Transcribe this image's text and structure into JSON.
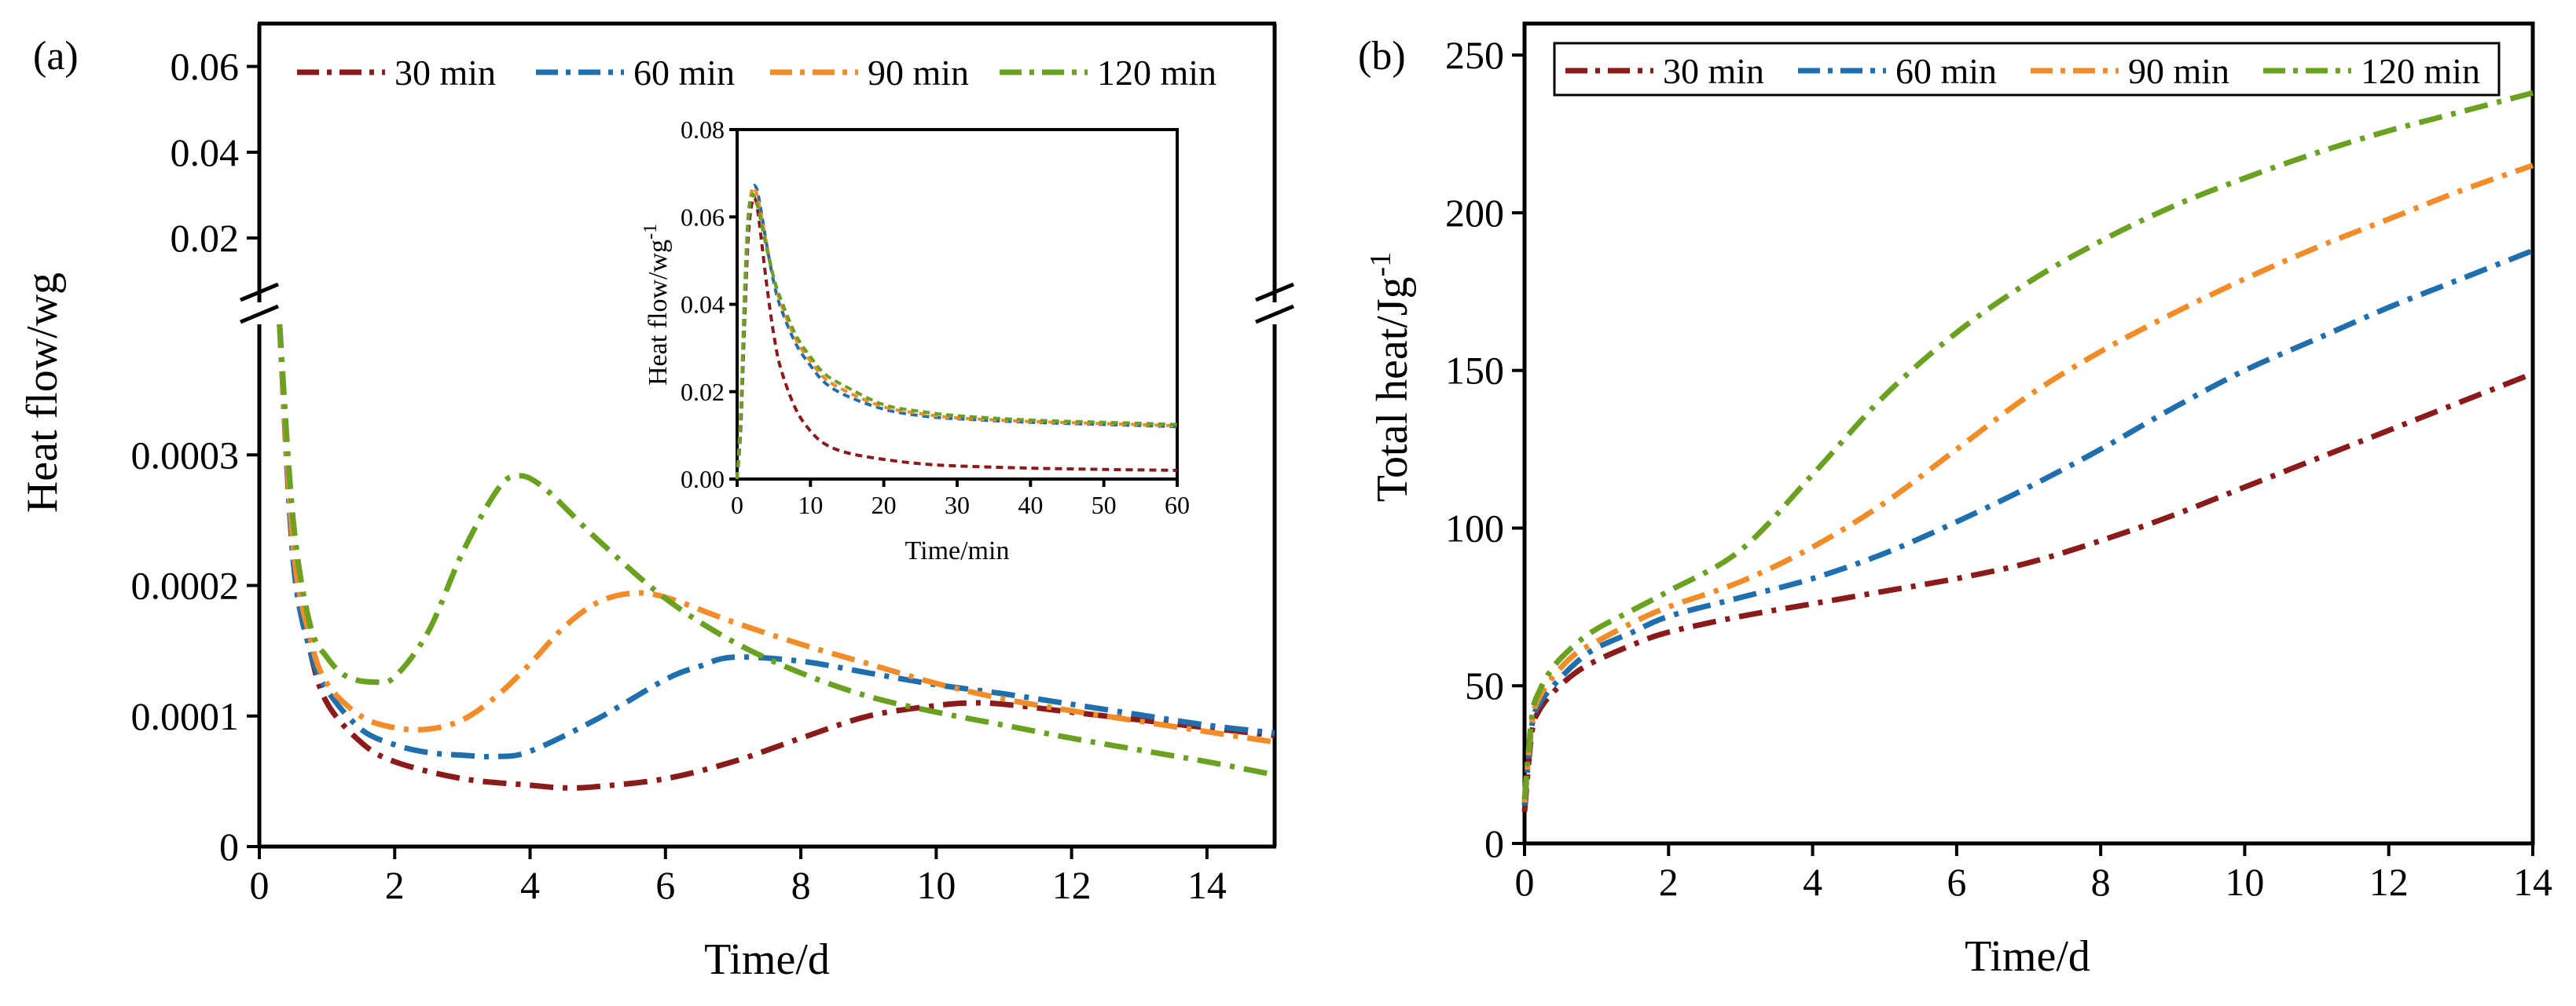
{
  "chart_data": [
    {
      "panel": "(a)",
      "type": "line",
      "ylabel": "Heat flow/wg",
      "xlabel": "Time/d",
      "xlim": [
        0,
        15
      ],
      "x_ticks": [
        0,
        2,
        4,
        6,
        8,
        10,
        12,
        14
      ],
      "y_lower_ticks": [
        0,
        0.0001,
        0.0002,
        0.0003
      ],
      "y_lower_tick_labels": [
        "0",
        "0.0001",
        "0.0002",
        "0.0003"
      ],
      "y_lower_range": [
        0,
        0.0004
      ],
      "y_upper_ticks": [
        0.02,
        0.04,
        0.06
      ],
      "y_upper_tick_labels": [
        "0.02",
        "0.04",
        "0.06"
      ],
      "y_upper_range": [
        0.005,
        0.07
      ],
      "legend": [
        "30 min",
        "60 min",
        "90 min",
        "120 min"
      ],
      "series": [
        {
          "name": "30 min",
          "color": "#8B1A1A",
          "x": [
            0.3,
            0.5,
            0.75,
            1,
            1.5,
            2,
            3,
            4,
            4.5,
            5,
            6,
            7,
            8,
            9,
            10,
            10.5,
            11,
            12,
            13,
            14,
            15
          ],
          "y": [
            0.0004,
            0.00022,
            0.00015,
            0.00011,
            8e-05,
            6.5e-05,
            5.2e-05,
            4.7e-05,
            4.5e-05,
            4.6e-05,
            5.2e-05,
            6.5e-05,
            8.3e-05,
            0.0001,
            0.000108,
            0.00011,
            0.000109,
            0.000103,
            9.7e-05,
            9.1e-05,
            8.5e-05
          ]
        },
        {
          "name": "60 min",
          "color": "#1F6FAF",
          "x": [
            0.3,
            0.5,
            0.75,
            1,
            1.5,
            2,
            2.5,
            3,
            3.5,
            4,
            5,
            6,
            6.5,
            7,
            8,
            9,
            10,
            11,
            12,
            13,
            14,
            15
          ],
          "y": [
            0.0004,
            0.00022,
            0.00015,
            0.00012,
            9e-05,
            7.8e-05,
            7.2e-05,
            7e-05,
            6.9e-05,
            7.3e-05,
            9.8e-05,
            0.000128,
            0.000138,
            0.000145,
            0.000142,
            0.000133,
            0.000124,
            0.000117,
            0.000109,
            0.000101,
            9.3e-05,
            8.7e-05
          ]
        },
        {
          "name": "90 min",
          "color": "#F28C28",
          "x": [
            0.3,
            0.5,
            0.75,
            1,
            1.5,
            2,
            2.5,
            3,
            3.5,
            4,
            4.5,
            5,
            5.5,
            6,
            7,
            8,
            9,
            10,
            11,
            12,
            13,
            14,
            15
          ],
          "y": [
            0.0004,
            0.00023,
            0.00016,
            0.000125,
            0.0001,
            9.1e-05,
            9e-05,
            9.7e-05,
            0.000115,
            0.00014,
            0.000168,
            0.000187,
            0.000194,
            0.000191,
            0.000172,
            0.000155,
            0.00014,
            0.000125,
            0.000113,
            0.000104,
            9.6e-05,
            8.8e-05,
            8e-05
          ]
        },
        {
          "name": "120 min",
          "color": "#6AA121",
          "x": [
            0.3,
            0.5,
            0.75,
            1,
            1.3,
            1.7,
            2,
            2.5,
            3,
            3.5,
            3.8,
            4.2,
            5,
            6,
            7,
            8,
            9,
            10,
            11,
            12,
            13,
            14,
            15
          ],
          "y": [
            0.0004,
            0.00025,
            0.00017,
            0.000145,
            0.00013,
            0.000126,
            0.00013,
            0.000165,
            0.000225,
            0.000272,
            0.000284,
            0.000275,
            0.000235,
            0.00019,
            0.000157,
            0.000133,
            0.000115,
            0.000103,
            9.3e-05,
            8.3e-05,
            7.4e-05,
            6.5e-05,
            5.5e-05
          ]
        }
      ]
    },
    {
      "panel": "inset",
      "type": "line",
      "xlabel": "Time/min",
      "ylabel": "Heat flow/wg",
      "ylabel_superscript": "-1",
      "xlim": [
        0,
        60
      ],
      "ylim": [
        0,
        0.08
      ],
      "x_ticks": [
        0,
        10,
        20,
        30,
        40,
        50,
        60
      ],
      "y_ticks": [
        0.0,
        0.02,
        0.04,
        0.06,
        0.08
      ],
      "y_tick_labels": [
        "0.00",
        "0.02",
        "0.04",
        "0.06",
        "0.08"
      ],
      "series": [
        {
          "name": "30 min",
          "color": "#8B1A1A",
          "x": [
            0,
            0.5,
            1,
            1.5,
            2,
            2.5,
            3,
            4,
            5,
            6,
            8,
            10,
            12,
            15,
            20,
            25,
            30,
            40,
            50,
            60
          ],
          "y": [
            0,
            0.012,
            0.035,
            0.055,
            0.063,
            0.064,
            0.059,
            0.045,
            0.033,
            0.025,
            0.016,
            0.011,
            0.008,
            0.006,
            0.0045,
            0.0035,
            0.003,
            0.0025,
            0.0022,
            0.002
          ]
        },
        {
          "name": "60 min",
          "color": "#1F6FAF",
          "x": [
            0,
            0.5,
            1,
            1.5,
            2,
            2.5,
            3,
            4,
            5,
            6,
            8,
            10,
            12,
            15,
            20,
            25,
            30,
            40,
            50,
            60
          ],
          "y": [
            0,
            0.014,
            0.038,
            0.058,
            0.066,
            0.067,
            0.064,
            0.054,
            0.045,
            0.039,
            0.031,
            0.026,
            0.022,
            0.019,
            0.016,
            0.0145,
            0.0138,
            0.013,
            0.0125,
            0.012
          ]
        },
        {
          "name": "90 min",
          "color": "#F28C28",
          "x": [
            0,
            0.5,
            1,
            1.5,
            2,
            2.5,
            3,
            4,
            5,
            6,
            8,
            10,
            12,
            15,
            20,
            25,
            30,
            40,
            50,
            60
          ],
          "y": [
            0,
            0.015,
            0.04,
            0.059,
            0.066,
            0.066,
            0.063,
            0.054,
            0.046,
            0.04,
            0.032,
            0.027,
            0.023,
            0.02,
            0.0165,
            0.015,
            0.014,
            0.0132,
            0.0127,
            0.0122
          ]
        },
        {
          "name": "120 min",
          "color": "#6AA121",
          "x": [
            0,
            0.5,
            1,
            1.5,
            2,
            2.5,
            3,
            4,
            5,
            6,
            8,
            10,
            12,
            15,
            20,
            25,
            30,
            40,
            50,
            60
          ],
          "y": [
            0,
            0.016,
            0.042,
            0.06,
            0.065,
            0.064,
            0.061,
            0.053,
            0.046,
            0.041,
            0.033,
            0.028,
            0.024,
            0.021,
            0.017,
            0.0155,
            0.0145,
            0.0135,
            0.013,
            0.0125
          ]
        }
      ]
    },
    {
      "panel": "(b)",
      "type": "line",
      "xlabel": "Time/d",
      "ylabel": "Total heat/Jg",
      "ylabel_superscript": "-1",
      "xlim": [
        0,
        14
      ],
      "ylim": [
        0,
        260
      ],
      "x_ticks": [
        0,
        2,
        4,
        6,
        8,
        10,
        12,
        14
      ],
      "y_ticks": [
        0,
        50,
        100,
        150,
        200,
        250
      ],
      "legend": [
        "30 min",
        "60 min",
        "90 min",
        "120 min"
      ],
      "series": [
        {
          "name": "30 min",
          "color": "#8B1A1A",
          "x": [
            0,
            0.1,
            0.2,
            0.4,
            0.7,
            1,
            1.5,
            2,
            3,
            4,
            5,
            6,
            7,
            8,
            9,
            10,
            11,
            12,
            13,
            14
          ],
          "y": [
            10,
            35,
            42,
            48,
            54,
            58,
            63,
            67,
            72,
            76,
            80,
            84,
            89,
            96,
            104,
            113,
            122,
            131,
            140,
            149
          ]
        },
        {
          "name": "60 min",
          "color": "#1F6FAF",
          "x": [
            0,
            0.1,
            0.2,
            0.4,
            0.7,
            1,
            1.5,
            2,
            3,
            4,
            5,
            6,
            7,
            8,
            9,
            10,
            11,
            12,
            13,
            14
          ],
          "y": [
            12,
            37,
            44,
            50,
            57,
            62,
            67,
            72,
            78,
            84,
            92,
            102,
            113,
            125,
            138,
            150,
            160,
            170,
            179,
            188
          ]
        },
        {
          "name": "90 min",
          "color": "#F28C28",
          "x": [
            0,
            0.1,
            0.2,
            0.4,
            0.7,
            1,
            1.5,
            2,
            3,
            4,
            5,
            6,
            7,
            8,
            9,
            10,
            11,
            12,
            13,
            14
          ],
          "y": [
            13,
            38,
            46,
            53,
            60,
            64,
            70,
            75,
            83,
            94,
            108,
            125,
            142,
            156,
            168,
            179,
            189,
            198,
            207,
            215
          ]
        },
        {
          "name": "120 min",
          "color": "#6AA121",
          "x": [
            0,
            0.1,
            0.2,
            0.4,
            0.7,
            1,
            1.5,
            2,
            3,
            4,
            5,
            6,
            7,
            8,
            9,
            10,
            11,
            12,
            13,
            14
          ],
          "y": [
            14,
            40,
            48,
            56,
            63,
            68,
            74,
            80,
            93,
            117,
            142,
            162,
            178,
            191,
            202,
            211,
            219,
            226,
            232,
            238
          ]
        }
      ]
    }
  ]
}
